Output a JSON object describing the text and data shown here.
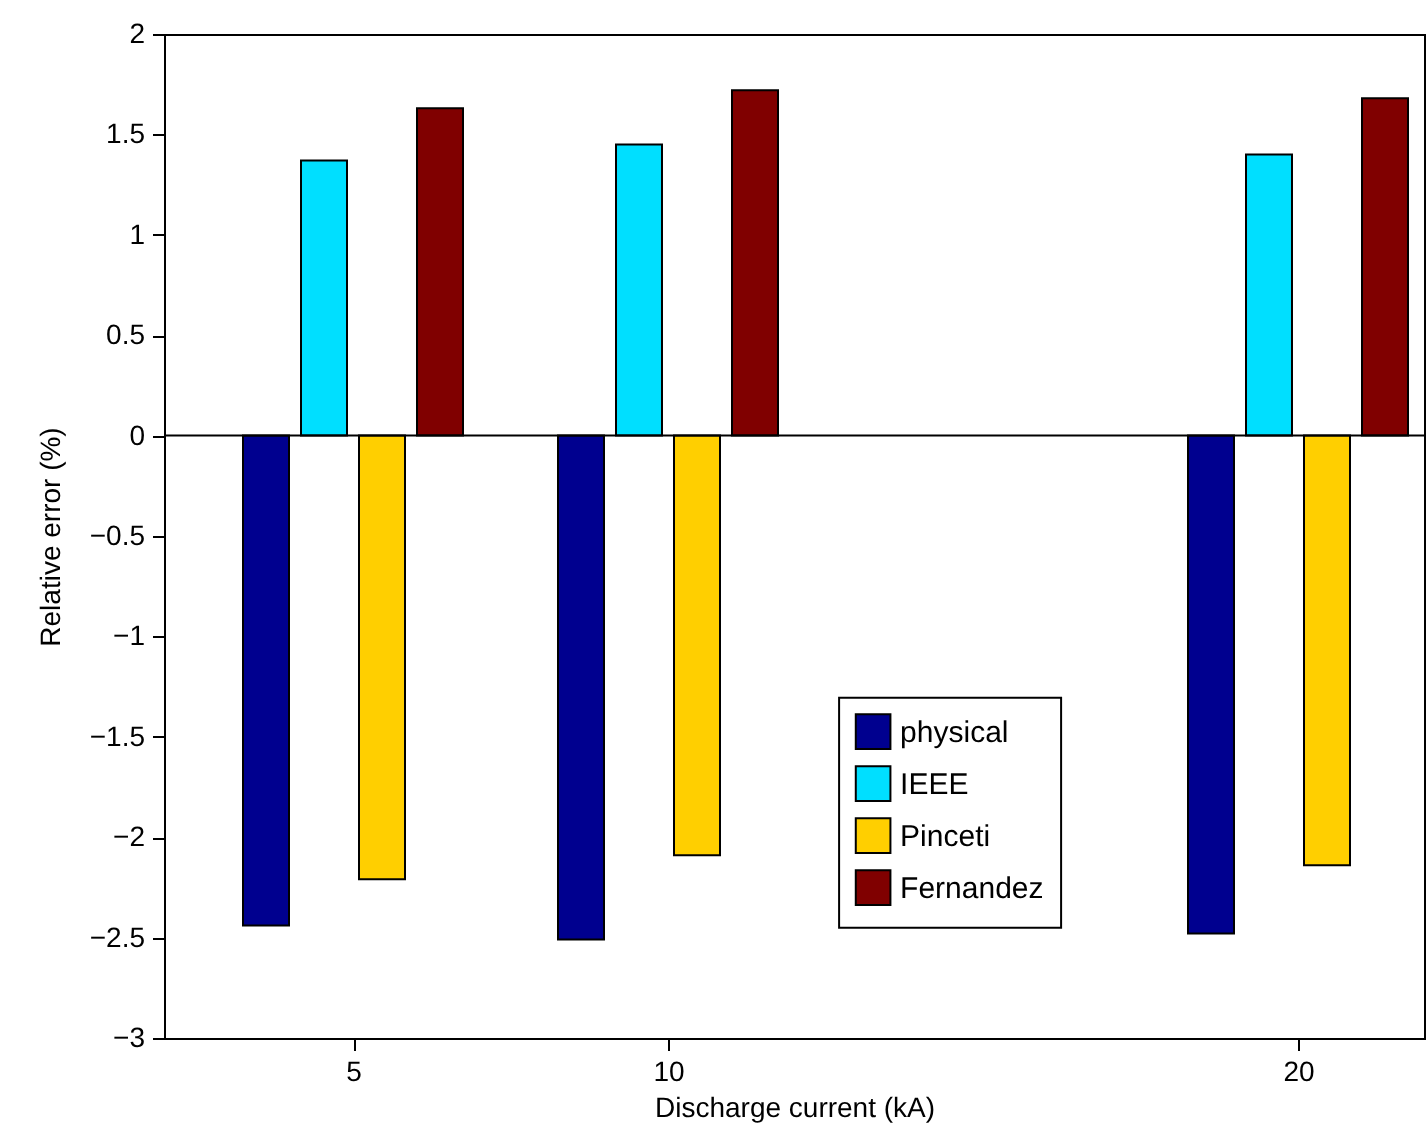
{
  "chart_data": {
    "type": "bar",
    "xlabel": "Discharge current (kA)",
    "ylabel": "Relative error (%)",
    "x": [
      5,
      10,
      20
    ],
    "series": [
      {
        "name": "physical",
        "color": "#00008f",
        "values": [
          -2.44,
          -2.51,
          -2.48
        ]
      },
      {
        "name": "IEEE",
        "color": "#00dfff",
        "values": [
          1.37,
          1.45,
          1.4
        ]
      },
      {
        "name": "Pinceti",
        "color": "#ffcf00",
        "values": [
          -2.21,
          -2.09,
          -2.14
        ]
      },
      {
        "name": "Fernandez",
        "color": "#800000",
        "values": [
          1.63,
          1.72,
          1.68
        ]
      }
    ],
    "xlim": [
      2,
      22
    ],
    "xticks": [
      5,
      10,
      20
    ],
    "ylim": [
      -3,
      2
    ],
    "yticks": [
      -3,
      -2.5,
      -2,
      -1.5,
      -1,
      -0.5,
      0,
      0.5,
      1,
      1.5,
      2
    ],
    "ref_lines": [
      {
        "axis": "y",
        "value": 0,
        "color": "#000000"
      }
    ],
    "legend": "bottom right",
    "grid": false
  }
}
